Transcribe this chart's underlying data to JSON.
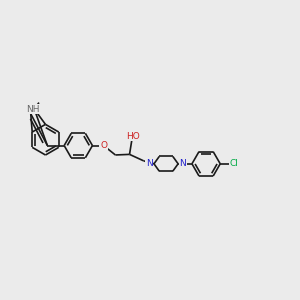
{
  "bg_color": "#ebebeb",
  "bond_color": "#1a1a1a",
  "bond_width": 1.2,
  "atom_colors": {
    "N": "#2020cc",
    "O": "#cc2020",
    "Cl": "#00aa44",
    "NH": "#666666",
    "C": "#1a1a1a"
  },
  "font_size": 6.5,
  "figsize": [
    3.0,
    3.0
  ],
  "dpi": 100
}
